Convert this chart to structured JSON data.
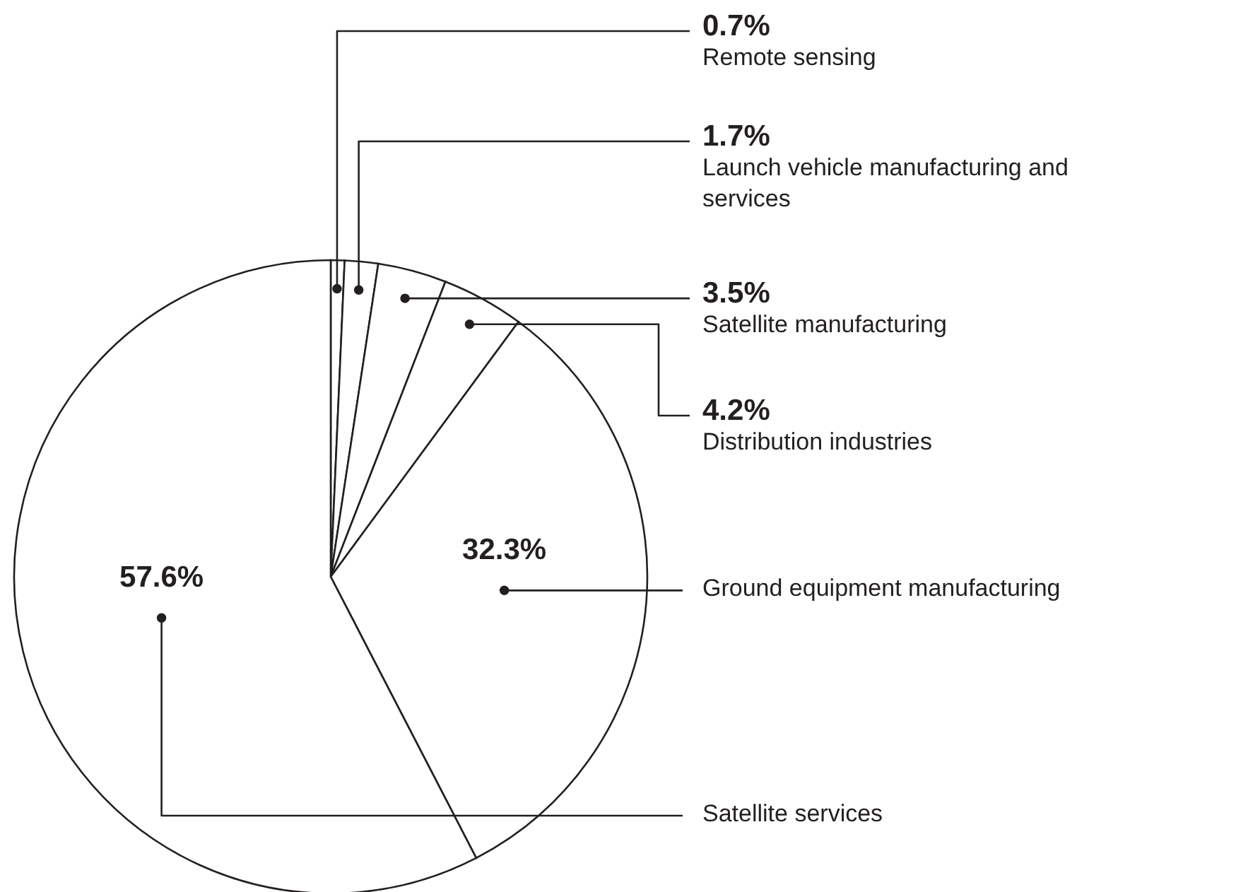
{
  "chart_data": {
    "type": "pie",
    "categories": [
      "Remote sensing",
      "Launch vehicle manufacturing and services",
      "Satellite manufacturing",
      "Distribution industries",
      "Ground equipment manufacturing",
      "Satellite services"
    ],
    "values": [
      0.7,
      1.7,
      3.5,
      4.2,
      32.3,
      57.6
    ],
    "value_labels": [
      "0.7%",
      "1.7%",
      "3.5%",
      "4.2%",
      "32.3%",
      "57.6%"
    ],
    "colors": [
      "#ffffff",
      "#ffffff",
      "#ffffff",
      "#ffffff",
      "#ffffff",
      "#ffffff"
    ]
  }
}
